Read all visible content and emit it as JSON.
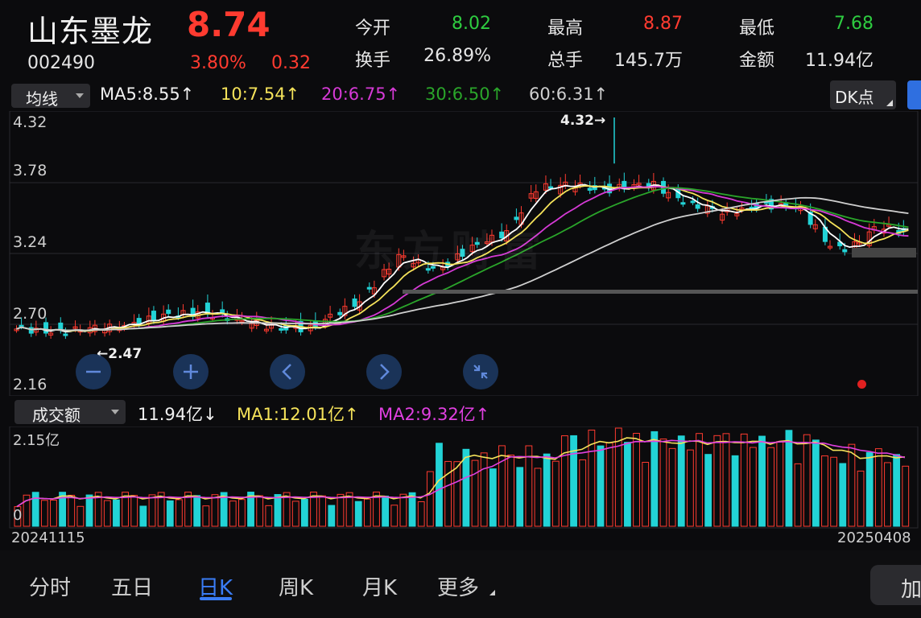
{
  "header": {
    "name": "山东墨龙",
    "price": "8.74",
    "code": "002490",
    "pct": "3.80%",
    "change": "0.32"
  },
  "quote": {
    "open_label": "今开",
    "open": "8.02",
    "high_label": "最高",
    "high": "8.87",
    "low_label": "最低",
    "low": "7.68",
    "turnover_label": "换手",
    "turnover": "26.89%",
    "volume_label": "总手",
    "volume": "145.7万",
    "amount_label": "金额",
    "amount": "11.94亿"
  },
  "ma_bar": {
    "selector": "均线",
    "ma5": "MA5:8.55↑",
    "ma10": "10:7.54↑",
    "ma20": "20:6.75↑",
    "ma30": "30:6.50↑",
    "ma60": "60:6.31↑",
    "dk_button": "DK点"
  },
  "kline": {
    "y_labels": [
      "4.32",
      "3.78",
      "3.24",
      "2.70",
      "2.16"
    ],
    "max_annot": "4.32→",
    "min_annot": "←2.47",
    "watermark": "东方财富"
  },
  "vol_bar": {
    "selector": "成交额",
    "value": "11.94亿↓",
    "ma1": "MA1:12.01亿↑",
    "ma2": "MA2:9.32亿↑",
    "y_top": "2.15亿",
    "y_bottom": "0",
    "date_start": "20241115",
    "date_end": "20250408"
  },
  "tabs": [
    "分时",
    "五日",
    "日K",
    "周K",
    "月K",
    "更多"
  ],
  "active_tab": "日K",
  "add_button": "加",
  "colors": {
    "up": "#ff3b30",
    "down": "#22d3d6",
    "ma5": "#ffffff",
    "ma10": "#f5e35a",
    "ma20": "#d63ad6",
    "ma30": "#2aa52a",
    "ma60": "#cfcfcf"
  },
  "chart_data": {
    "type": "candlestick",
    "ylim": [
      2.16,
      4.32
    ],
    "max_value": 4.32,
    "min_value": 2.47,
    "x_range": [
      "20241115",
      "20250408"
    ],
    "volume_ylim": [
      0,
      2.15
    ],
    "volume_unit": "亿"
  }
}
